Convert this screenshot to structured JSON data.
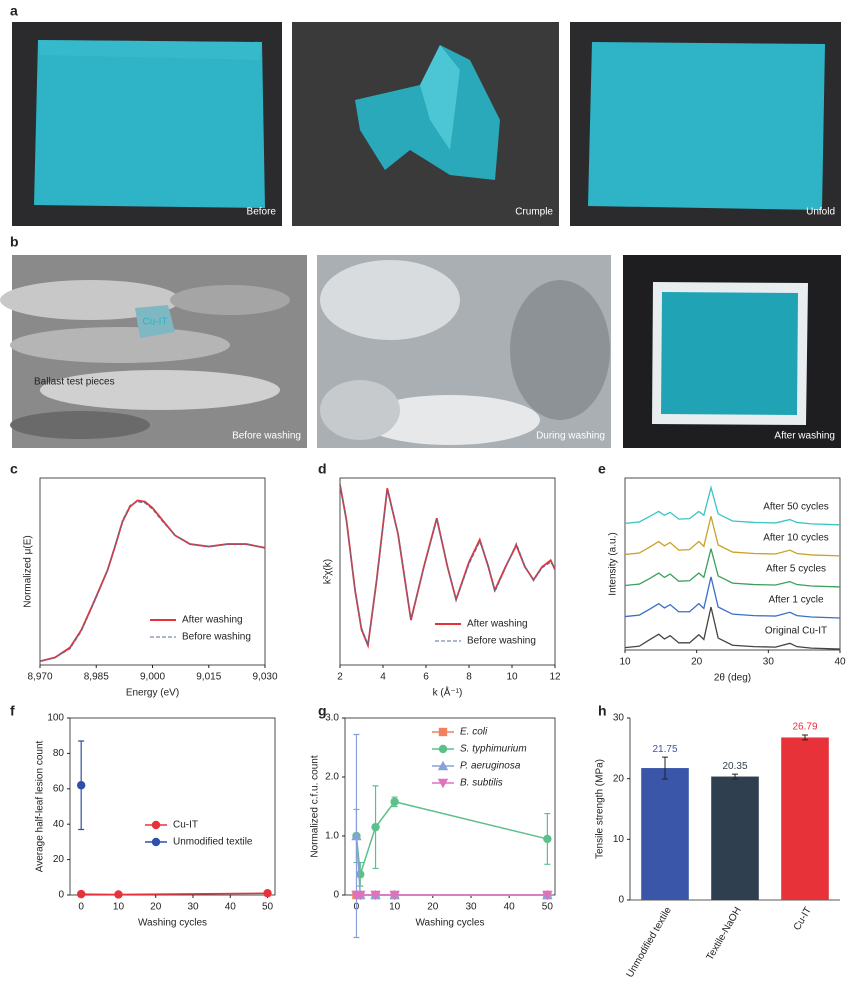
{
  "figure": {
    "photos_a": {
      "panel": "a",
      "captions": [
        "Before",
        "Crumple",
        "Unfold"
      ]
    },
    "photos_b": {
      "panel": "b",
      "captions": [
        "Before washing",
        "During washing",
        "After washing"
      ],
      "annotations": [
        "Cu-IT",
        "Ballast test pieces"
      ]
    }
  },
  "chart_data": [
    {
      "type": "line",
      "panel": "c",
      "xlabel": "Energy (eV)",
      "ylabel": "Normalized μ(E)",
      "x": [
        8970,
        8974,
        8978,
        8981,
        8984,
        8986,
        8988,
        8990,
        8992,
        8994,
        8996,
        8998,
        9000,
        9003,
        9006,
        9010,
        9015,
        9020,
        9025,
        9030
      ],
      "xlim": [
        8970,
        9030
      ],
      "xticks": [
        {
          "value": 8970,
          "label": "8,970"
        },
        {
          "value": 8985,
          "label": "8,985"
        },
        {
          "value": 9000,
          "label": "9,000"
        },
        {
          "value": 9015,
          "label": "9,015"
        },
        {
          "value": 9030,
          "label": "9,030"
        }
      ],
      "ylim": [
        0,
        1.5
      ],
      "series": [
        {
          "name": "After washing",
          "color": "#e8323a",
          "dash": "solid",
          "values": [
            0.03,
            0.06,
            0.14,
            0.28,
            0.48,
            0.62,
            0.76,
            0.95,
            1.15,
            1.27,
            1.32,
            1.31,
            1.26,
            1.15,
            1.04,
            0.97,
            0.95,
            0.97,
            0.97,
            0.94
          ]
        },
        {
          "name": "Before washing",
          "color": "#5a6f8f",
          "dash": "dashed",
          "values": [
            0.03,
            0.06,
            0.13,
            0.27,
            0.47,
            0.61,
            0.76,
            0.96,
            1.16,
            1.28,
            1.31,
            1.3,
            1.25,
            1.14,
            1.04,
            0.97,
            0.95,
            0.97,
            0.97,
            0.94
          ]
        }
      ]
    },
    {
      "type": "line",
      "panel": "d",
      "xlabel": "k (Å⁻¹)",
      "ylabel": "k²χ(k)",
      "x": [
        2,
        2.3,
        2.7,
        3.0,
        3.3,
        3.7,
        4.2,
        4.7,
        5.3,
        5.9,
        6.5,
        7.0,
        7.4,
        8.0,
        8.5,
        8.9,
        9.2,
        9.7,
        10.2,
        10.6,
        11.0,
        11.4,
        11.8,
        12
      ],
      "xlim": [
        2,
        12
      ],
      "xticks": [
        2,
        4,
        6,
        8,
        10,
        12
      ],
      "ylim": [
        -1,
        1
      ],
      "series": [
        {
          "name": "After washing",
          "color": "#e8323a",
          "dash": "solid",
          "values": [
            0.93,
            0.55,
            -0.2,
            -0.62,
            -0.79,
            -0.1,
            0.89,
            0.4,
            -0.52,
            0.05,
            0.57,
            0.05,
            -0.3,
            0.1,
            0.34,
            0.05,
            -0.2,
            0.05,
            0.28,
            0.05,
            -0.09,
            0.05,
            0.12,
            0.02
          ]
        },
        {
          "name": "Before washing",
          "color": "#5a6f8f",
          "dash": "dashed",
          "values": [
            0.92,
            0.54,
            -0.21,
            -0.6,
            -0.78,
            -0.1,
            0.87,
            0.4,
            -0.5,
            0.04,
            0.55,
            0.06,
            -0.31,
            0.08,
            0.32,
            0.07,
            -0.22,
            0.04,
            0.3,
            0.06,
            -0.1,
            0.04,
            0.1,
            0.03
          ]
        }
      ]
    },
    {
      "type": "ridgeline",
      "panel": "e",
      "xlabel": "2θ (deg)",
      "ylabel": "Intensity (a.u.)",
      "x": [
        10,
        12,
        13.5,
        14.7,
        15.5,
        16.3,
        17.5,
        19,
        20.3,
        21,
        22,
        23,
        25,
        28,
        31,
        33,
        34,
        36,
        40
      ],
      "xlim": [
        10,
        40
      ],
      "xticks": [
        10,
        20,
        30,
        40
      ],
      "ylim": [
        0,
        3.6
      ],
      "series": [
        {
          "name": "After 50 cycles",
          "color": "#3cc4c4",
          "values": [
            0.05,
            0.08,
            0.2,
            0.3,
            0.22,
            0.28,
            0.14,
            0.15,
            0.3,
            0.22,
            0.8,
            0.25,
            0.1,
            0.07,
            0.06,
            0.13,
            0.07,
            0.04,
            0.02
          ]
        },
        {
          "name": "After 10 cycles",
          "color": "#c9a227",
          "values": [
            0.05,
            0.08,
            0.21,
            0.32,
            0.23,
            0.3,
            0.14,
            0.15,
            0.32,
            0.22,
            0.85,
            0.25,
            0.1,
            0.07,
            0.06,
            0.14,
            0.07,
            0.04,
            0.02
          ]
        },
        {
          "name": "After 5 cycles",
          "color": "#3aa05a",
          "values": [
            0.05,
            0.08,
            0.2,
            0.31,
            0.22,
            0.29,
            0.14,
            0.15,
            0.31,
            0.22,
            0.82,
            0.25,
            0.1,
            0.07,
            0.06,
            0.13,
            0.07,
            0.04,
            0.02
          ]
        },
        {
          "name": "After 1 cycle",
          "color": "#3a6fc8",
          "values": [
            0.05,
            0.08,
            0.21,
            0.32,
            0.23,
            0.3,
            0.15,
            0.15,
            0.32,
            0.22,
            0.88,
            0.25,
            0.1,
            0.07,
            0.06,
            0.14,
            0.07,
            0.04,
            0.02
          ]
        },
        {
          "name": "Original Cu-IT",
          "color": "#444444",
          "values": [
            0.05,
            0.08,
            0.22,
            0.33,
            0.23,
            0.3,
            0.15,
            0.15,
            0.32,
            0.22,
            0.9,
            0.25,
            0.1,
            0.07,
            0.06,
            0.14,
            0.07,
            0.04,
            0.02
          ]
        }
      ]
    },
    {
      "type": "errorline",
      "panel": "f",
      "xlabel": "Washing cycles",
      "ylabel": "Average half-leaf lesion count",
      "xlim": [
        -3,
        52
      ],
      "xticks": [
        0,
        10,
        20,
        30,
        40,
        50
      ],
      "ylim": [
        0,
        100
      ],
      "yticks": [
        0,
        20,
        40,
        60,
        80,
        100
      ],
      "series": [
        {
          "name": "Cu-IT",
          "color": "#e8323a",
          "marker": "circle",
          "x": [
            0,
            10,
            50
          ],
          "values": [
            0.5,
            0.3,
            1
          ],
          "errors": [
            0,
            0,
            0
          ]
        },
        {
          "name": "Unmodified textile",
          "color": "#2f4fa8",
          "marker": "circle",
          "x": [
            0
          ],
          "values": [
            62
          ],
          "errors": [
            25
          ]
        }
      ]
    },
    {
      "type": "errorline",
      "panel": "g",
      "xlabel": "Washing cycles",
      "ylabel": "Normalized c.f.u. count",
      "x": [
        0,
        1,
        5,
        10,
        50
      ],
      "xlim": [
        -3,
        52
      ],
      "xticks": [
        0,
        10,
        20,
        30,
        40,
        50
      ],
      "ylim": [
        0,
        3
      ],
      "yticks": [
        0,
        {
          "value": 1,
          "label": "1.0"
        },
        {
          "value": 2,
          "label": "2.0"
        },
        {
          "value": 3,
          "label": "3.0"
        }
      ],
      "series": [
        {
          "name": "E. coli",
          "color": "#f08060",
          "marker": "square",
          "values": [
            0,
            0,
            0,
            0,
            0
          ],
          "errors": [
            0,
            0,
            0,
            0,
            0
          ]
        },
        {
          "name": "S. typhimurium",
          "color": "#5cc08a",
          "marker": "circle",
          "values": [
            1,
            0.35,
            1.15,
            1.58,
            0.95
          ],
          "errors": [
            0.45,
            0.2,
            0.7,
            0.08,
            0.43
          ]
        },
        {
          "name": "P. aeruginosa",
          "color": "#8aa0d8",
          "marker": "triangle",
          "values": [
            1,
            0,
            0,
            0,
            0
          ],
          "errors": [
            1.72,
            0,
            0,
            0,
            0
          ]
        },
        {
          "name": "B. subtilis",
          "color": "#e070c0",
          "marker": "triangle-down",
          "values": [
            0,
            0,
            0,
            0,
            0
          ],
          "errors": [
            0,
            0,
            0,
            0,
            0
          ]
        }
      ]
    },
    {
      "type": "bar",
      "panel": "h",
      "ylabel": "Tensile strength (MPa)",
      "categories": [
        "Unmodified textile",
        "Textile-NaOH",
        "Cu-IT"
      ],
      "values": [
        21.75,
        20.35,
        26.79
      ],
      "errors": [
        1.8,
        0.4,
        0.4
      ],
      "colors": [
        "#3a56a8",
        "#2f3f4f",
        "#e8323a"
      ],
      "ylim": [
        0,
        30
      ],
      "yticks": [
        0,
        10,
        20,
        30
      ]
    }
  ]
}
